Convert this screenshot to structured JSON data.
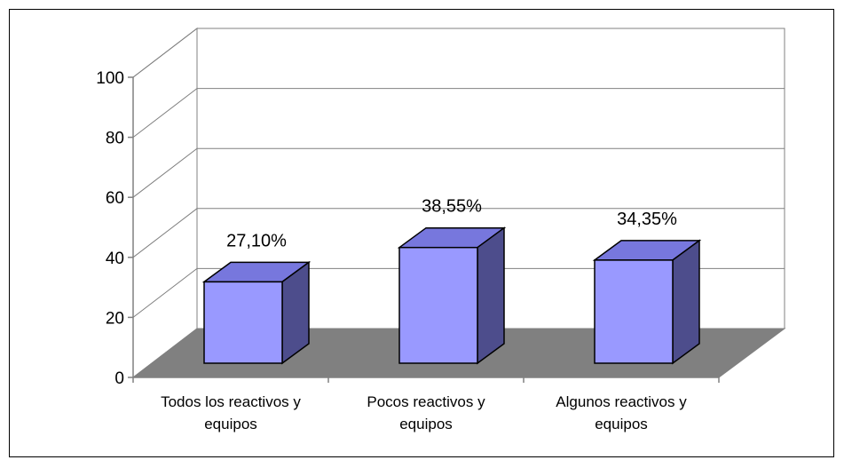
{
  "chart_data": {
    "type": "bar",
    "categories": [
      [
        "Todos los reactivos y",
        "equipos"
      ],
      [
        "Pocos reactivos y",
        "equipos"
      ],
      [
        "Algunos reactivos y",
        "equipos"
      ]
    ],
    "values": [
      27.1,
      38.55,
      34.35
    ],
    "data_labels": [
      "27,10%",
      "38,55%",
      "34,35%"
    ],
    "ylim": [
      0,
      100
    ],
    "yticks": [
      "0",
      "20",
      "40",
      "60",
      "80",
      "100"
    ],
    "grid": true,
    "three_d": true,
    "legend": "none",
    "colors": {
      "bar_front": "#9999ff",
      "bar_top": "#7777dd",
      "bar_side": "#4d4d8c",
      "floor": "#808080",
      "gridline": "#808080",
      "axis": "#808080"
    }
  }
}
